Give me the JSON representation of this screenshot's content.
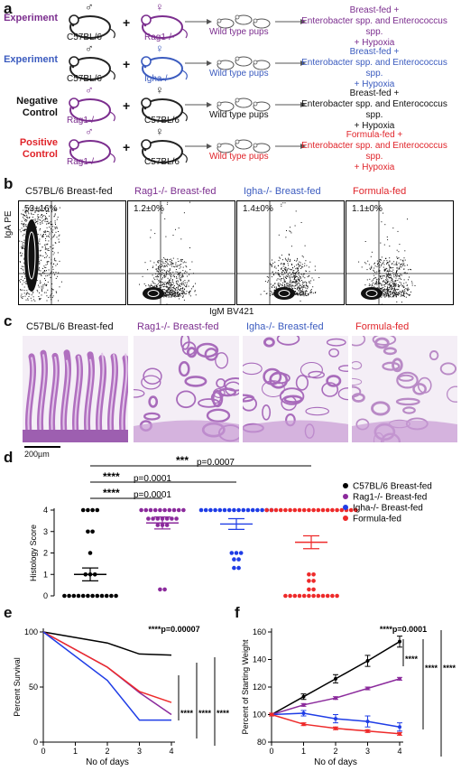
{
  "panels": {
    "a": "a",
    "b": "b",
    "c": "c",
    "d": "d",
    "e": "e",
    "f": "f"
  },
  "panel_a": {
    "rows": [
      {
        "role": "Experiment",
        "role_color": "#7b2d8e",
        "male": "C57BL/6",
        "female": "Rag1-/-",
        "female_color": "#7b2d8e",
        "male_color": "#111",
        "pups": "Wild type pups",
        "pups_color": "#7b2d8e",
        "outcome": [
          "Breast-fed +",
          "Enterobacter spp. and Enterococcus spp.",
          "+ Hypoxia"
        ],
        "outcome_color": "#7b2d8e"
      },
      {
        "role": "Experiment",
        "role_color": "#3b5bbf",
        "male": "C57BL/6",
        "female": "Igha-/-",
        "female_color": "#3b5bbf",
        "male_color": "#111",
        "pups": "Wild type pups",
        "pups_color": "#3b5bbf",
        "outcome": [
          "Breast-fed +",
          "Enterobacter spp. and Enterococcus spp.",
          "+ Hypoxia"
        ],
        "outcome_color": "#3b5bbf"
      },
      {
        "role": "Negative Control",
        "role_color": "#111",
        "male": "Rag1-/-",
        "female": "C57BL/6",
        "female_color": "#111",
        "male_color": "#7b2d8e",
        "pups": "Wild type pups",
        "pups_color": "#111",
        "outcome": [
          "Breast-fed +",
          "Enterobacter spp. and Enterococcus spp.",
          "+ Hypoxia"
        ],
        "outcome_color": "#111"
      },
      {
        "role": "Positive Control",
        "role_color": "#e0242a",
        "male": "Rag1-/-",
        "female": "C57BL/6",
        "female_color": "#111",
        "male_color": "#7b2d8e",
        "pups": "Wild type pups",
        "pups_color": "#e0242a",
        "outcome": [
          "Formula-fed +",
          "Enterobacter spp. and Enterococcus spp.",
          "+ Hypoxia"
        ],
        "outcome_color": "#e0242a"
      }
    ],
    "plus": "+"
  },
  "panel_b": {
    "plots": [
      {
        "title": "C57BL/6 Breast-fed",
        "color": "#111",
        "pct": "53±16%"
      },
      {
        "title": "Rag1-/- Breast-fed",
        "color": "#7b2d8e",
        "pct": "1.2±0%"
      },
      {
        "title": "Igha-/- Breast-fed",
        "color": "#3b5bbf",
        "pct": "1.4±0%"
      },
      {
        "title": "Formula-fed",
        "color": "#e0242a",
        "pct": "1.1±0%"
      }
    ],
    "ylabel": "IgA PE",
    "xlabel": "IgM BV421"
  },
  "panel_c": {
    "titles": [
      {
        "text": "C57BL/6 Breast-fed",
        "color": "#111"
      },
      {
        "text": "Rag1-/- Breast-fed",
        "color": "#7b2d8e"
      },
      {
        "text": "Igha-/- Breast-fed",
        "color": "#3b5bbf"
      },
      {
        "text": "Formula-fed",
        "color": "#e0242a"
      }
    ],
    "scalebar": "200µm"
  },
  "chart_data": [
    {
      "type": "scatter",
      "panel": "d",
      "ylabel": "Histology Score",
      "ylim": [
        0,
        4
      ],
      "yticks": [
        "0",
        "1",
        "2",
        "3",
        "4"
      ],
      "groups": [
        {
          "name": "C57BL/6 Breast-fed",
          "color": "#000000",
          "mean": 1.0,
          "sem": 0.3,
          "values": [
            4,
            4,
            4,
            4,
            3,
            3,
            2,
            1,
            1,
            1,
            0,
            0,
            0,
            0,
            0,
            0,
            0,
            0,
            0,
            0,
            0,
            0
          ]
        },
        {
          "name": "Rag1-/- Breast-fed",
          "color": "#8b2a9c",
          "mean": 3.4,
          "sem": 0.28,
          "values": [
            4,
            4,
            4,
            4,
            4,
            4,
            4,
            4,
            4,
            4,
            3.6,
            3.6,
            3.6,
            3.6,
            3.6,
            3.6,
            3.6,
            3.3,
            3.3,
            3.3,
            0.3,
            0.3
          ]
        },
        {
          "name": "Igha-/- Breast-fed",
          "color": "#1f3de6",
          "mean": 3.35,
          "sem": 0.25,
          "values": [
            4,
            4,
            4,
            4,
            4,
            4,
            4,
            4,
            4,
            4,
            4,
            4,
            4,
            4,
            4,
            4,
            2,
            2,
            2,
            1.7,
            1.7,
            1.3,
            1.3
          ]
        },
        {
          "name": "Formula-fed",
          "color": "#ee2a2a",
          "mean": 2.5,
          "sem": 0.3,
          "values": [
            4,
            4,
            4,
            4,
            4,
            4,
            4,
            4,
            4,
            4,
            4,
            4,
            4,
            4,
            4,
            4,
            4,
            4,
            4,
            4,
            1.0,
            1.0,
            0.7,
            0.7,
            0.3,
            0.3,
            0,
            0,
            0,
            0,
            0,
            0,
            0,
            0,
            0,
            0,
            0,
            0
          ]
        }
      ],
      "comparisons": [
        {
          "stars": "****",
          "p": "p=0.0001",
          "from": 0,
          "to": 1
        },
        {
          "stars": "****",
          "p": "p=0.0001",
          "from": 0,
          "to": 2
        },
        {
          "stars": "***",
          "p": "p=0.0007",
          "from": 0,
          "to": 3
        }
      ]
    },
    {
      "type": "line",
      "panel": "e",
      "xlabel": "No of days",
      "ylabel": "Percent Survival",
      "x": [
        0,
        1,
        2,
        3,
        4
      ],
      "xlim": [
        0,
        4
      ],
      "ylim": [
        0,
        100
      ],
      "xticks": [
        "0",
        "1",
        "2",
        "3",
        "4"
      ],
      "yticks": [
        "0",
        "50",
        "100"
      ],
      "series": [
        {
          "color": "#000000",
          "points": [
            [
              0,
              100
            ],
            [
              2,
              90
            ],
            [
              3,
              80
            ],
            [
              4,
              79
            ]
          ]
        },
        {
          "color": "#8b2a9c",
          "points": [
            [
              0,
              100
            ],
            [
              2,
              68
            ],
            [
              3,
              45
            ],
            [
              4,
              25
            ]
          ]
        },
        {
          "color": "#ee2a2a",
          "points": [
            [
              0,
              100
            ],
            [
              2,
              68
            ],
            [
              3,
              46
            ],
            [
              4,
              36
            ]
          ]
        },
        {
          "color": "#1f3de6",
          "points": [
            [
              0,
              100
            ],
            [
              2,
              56
            ],
            [
              3,
              20
            ],
            [
              4,
              20
            ]
          ]
        }
      ],
      "annotation": "****p=0.00007",
      "sig": [
        "****",
        "****",
        "****"
      ]
    },
    {
      "type": "line",
      "panel": "f",
      "xlabel": "No of days",
      "ylabel": "Percent of Starting Weight",
      "x": [
        0,
        1,
        2,
        3,
        4
      ],
      "xlim": [
        0,
        4
      ],
      "ylim": [
        80,
        160
      ],
      "xticks": [
        "0",
        "1",
        "2",
        "3",
        "4"
      ],
      "yticks": [
        "80",
        "100",
        "120",
        "140",
        "160"
      ],
      "series": [
        {
          "color": "#000000",
          "values": [
            100,
            113,
            126,
            139,
            153
          ],
          "err": [
            1,
            2,
            3,
            4,
            4
          ]
        },
        {
          "color": "#8b2a9c",
          "values": [
            100,
            107,
            112,
            119,
            126
          ],
          "err": [
            1,
            1,
            1,
            1,
            1
          ]
        },
        {
          "color": "#1f3de6",
          "values": [
            100,
            101,
            97,
            95,
            91
          ],
          "err": [
            1,
            2,
            3,
            4,
            3
          ]
        },
        {
          "color": "#ee2a2a",
          "values": [
            100,
            93,
            90,
            88,
            86
          ],
          "err": [
            1,
            1,
            1,
            1,
            1
          ]
        }
      ],
      "annotation": "****p=0.0001",
      "sig": [
        "****",
        "****",
        "****"
      ]
    }
  ],
  "legend": [
    {
      "label": "C57BL/6 Breast-fed",
      "color": "#000000"
    },
    {
      "label": "Rag1-/- Breast-fed",
      "color": "#8b2a9c"
    },
    {
      "label": "Igha-/- Breast-fed",
      "color": "#1f3de6"
    },
    {
      "label": "Formula-fed",
      "color": "#ee2a2a"
    }
  ]
}
